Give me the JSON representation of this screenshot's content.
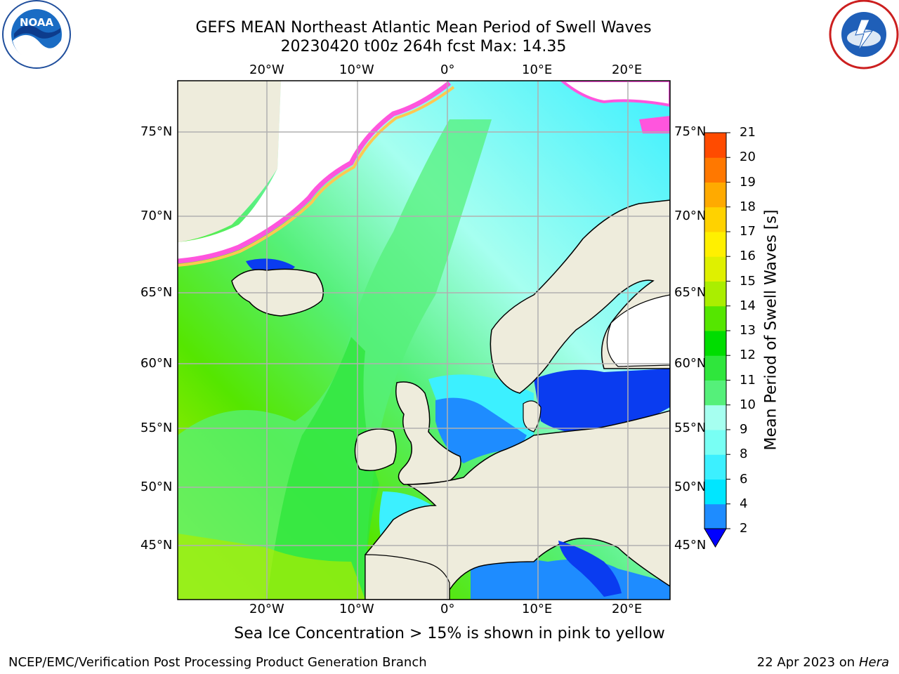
{
  "title": {
    "line1": "GEFS MEAN Northeast Atlantic Mean Period of Swell Waves",
    "line2": "20230420 t00z 264h fcst   Max: 14.35"
  },
  "map": {
    "lon_labels": [
      "20°W",
      "10°W",
      "0°",
      "10°E",
      "20°E"
    ],
    "lat_labels": [
      "75°N",
      "70°N",
      "65°N",
      "60°N",
      "55°N",
      "50°N",
      "45°N"
    ],
    "colors": {
      "land": "#eeecdc",
      "grid": "#b0b0b0",
      "coast": "#000000"
    }
  },
  "colorbar": {
    "label": "Mean Period of Swell Waves [s]",
    "ticks": [
      "2",
      "4",
      "6",
      "8",
      "9",
      "10",
      "11",
      "12",
      "13",
      "14",
      "15",
      "16",
      "17",
      "18",
      "19",
      "20",
      "21"
    ],
    "colors": [
      "#0a3cf0",
      "#1e8cff",
      "#00e6ff",
      "#3cf0ff",
      "#78fff4",
      "#a6fff0",
      "#55f07a",
      "#2fe63c",
      "#00dd00",
      "#55e600",
      "#aaee00",
      "#dff000",
      "#fff000",
      "#ffd200",
      "#ffaa00",
      "#ff7800",
      "#ff4b00",
      "#ff1e00"
    ],
    "extend_color": "#0000ff"
  },
  "sea_ice_note": "Sea Ice Concentration > 15% is shown in pink to yellow",
  "footer": {
    "left": "NCEP/EMC/Verification Post Processing Product Generation Branch",
    "date": "22 Apr 2023 on ",
    "host": "Hera"
  }
}
